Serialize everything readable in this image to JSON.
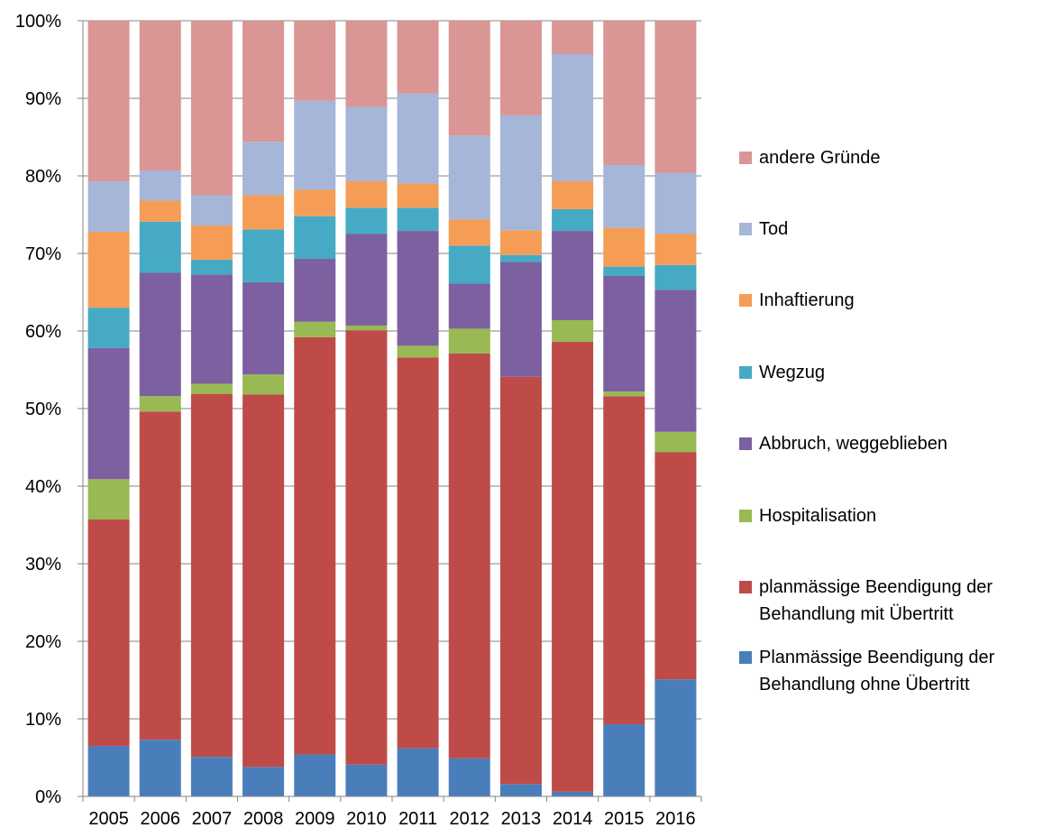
{
  "chart_data": {
    "type": "bar",
    "stacked": true,
    "title": "",
    "xlabel": "",
    "ylabel": "",
    "ylim": [
      0,
      100
    ],
    "y_ticks": [
      "0%",
      "10%",
      "20%",
      "30%",
      "40%",
      "50%",
      "60%",
      "70%",
      "80%",
      "90%",
      "100%"
    ],
    "grid": true,
    "legend_position": "right",
    "categories": [
      "2005",
      "2006",
      "2007",
      "2008",
      "2009",
      "2010",
      "2011",
      "2012",
      "2013",
      "2014",
      "2015",
      "2016"
    ],
    "series": [
      {
        "name": "Planmässige Beendigung der Behandlung ohne Übertritt",
        "color": "#4a7ebb",
        "values": [
          6.5,
          7.3,
          5.1,
          3.8,
          5.4,
          4.1,
          6.2,
          4.9,
          1.6,
          0.6,
          9.3,
          15.1
        ]
      },
      {
        "name": "planmässige Beendigung der Behandlung mit Übertritt",
        "color": "#be4b48",
        "values": [
          29.2,
          42.3,
          46.8,
          48.0,
          53.8,
          56.0,
          50.4,
          52.2,
          52.5,
          58.0,
          42.3,
          29.3
        ]
      },
      {
        "name": "Hospitalisation",
        "color": "#98b954",
        "values": [
          5.2,
          2.0,
          1.3,
          2.6,
          2.0,
          0.6,
          1.5,
          3.2,
          0.0,
          2.8,
          0.6,
          2.6
        ]
      },
      {
        "name": "Abbruch, weggeblieben",
        "color": "#7d60a0",
        "values": [
          16.9,
          15.9,
          14.1,
          11.9,
          8.1,
          11.8,
          14.8,
          5.8,
          14.8,
          11.5,
          14.9,
          18.3
        ]
      },
      {
        "name": "Wegzug",
        "color": "#46aac4",
        "values": [
          5.2,
          6.6,
          1.9,
          6.8,
          5.5,
          3.4,
          3.0,
          4.9,
          0.9,
          2.8,
          1.2,
          3.2
        ]
      },
      {
        "name": "Inhaftierung",
        "color": "#f59d56",
        "values": [
          9.8,
          2.7,
          4.4,
          4.4,
          3.4,
          3.4,
          3.1,
          3.4,
          3.2,
          3.6,
          5.0,
          4.0
        ]
      },
      {
        "name": "Tod",
        "color": "#a5b6d8",
        "values": [
          6.5,
          3.9,
          3.9,
          6.9,
          11.5,
          9.6,
          11.6,
          10.8,
          14.8,
          16.4,
          8.1,
          7.9
        ]
      },
      {
        "name": "andere Gründe",
        "color": "#d99694",
        "values": [
          20.7,
          19.3,
          22.5,
          15.6,
          10.3,
          11.1,
          9.4,
          14.8,
          12.2,
          4.3,
          18.6,
          19.6
        ]
      }
    ]
  }
}
